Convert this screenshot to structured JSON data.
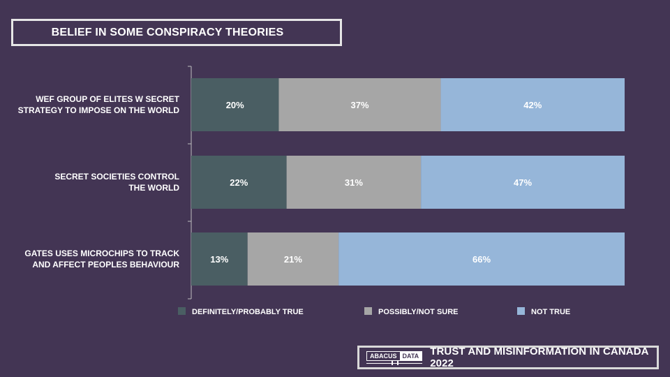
{
  "title": "BELIEF IN SOME CONSPIRACY THEORIES",
  "footer": {
    "logo_left": "ABACUS",
    "logo_right": "DATA",
    "text": "TRUST AND MISINFORMATION IN CANADA 2022"
  },
  "colors": {
    "background": "#433554",
    "definitely_probably_true": "#4a5e63",
    "possibly_not_sure": "#a6a6a6",
    "not_true": "#96b6d9"
  },
  "chart_data": {
    "type": "bar",
    "orientation": "horizontal",
    "stacked": true,
    "categories": [
      [
        "WEF GROUP OF ELITES W SECRET",
        "STRATEGY TO IMPOSE ON THE WORLD"
      ],
      [
        "SECRET SOCIETIES CONTROL",
        "THE WORLD"
      ],
      [
        "GATES USES MICROCHIPS TO TRACK",
        "AND AFFECT PEOPLES BEHAVIOUR"
      ]
    ],
    "series": [
      {
        "name": "DEFINITELY/PROBABLY TRUE",
        "values": [
          20,
          22,
          13
        ],
        "labels": [
          "20%",
          "22%",
          "13%"
        ],
        "color": "#4a5e63"
      },
      {
        "name": "POSSIBLY/NOT SURE",
        "values": [
          37,
          31,
          21
        ],
        "labels": [
          "37%",
          "31%",
          "21%"
        ],
        "color": "#a6a6a6"
      },
      {
        "name": "NOT TRUE",
        "values": [
          42,
          47,
          66
        ],
        "labels": [
          "42%",
          "47%",
          "66%"
        ],
        "color": "#96b6d9"
      }
    ],
    "legend_position": "bottom",
    "grid": false
  }
}
